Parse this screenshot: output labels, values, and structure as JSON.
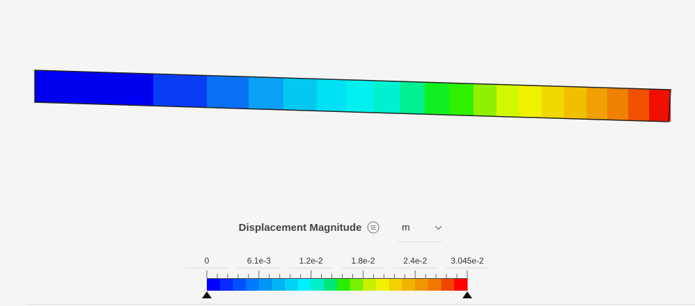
{
  "legend": {
    "title": "Displacement Magnitude",
    "unit": "m",
    "tick_labels": [
      "0",
      "6.1e-3",
      "1.2e-2",
      "1.8e-2",
      "2.4e-2",
      "3.045e-2"
    ]
  }
}
